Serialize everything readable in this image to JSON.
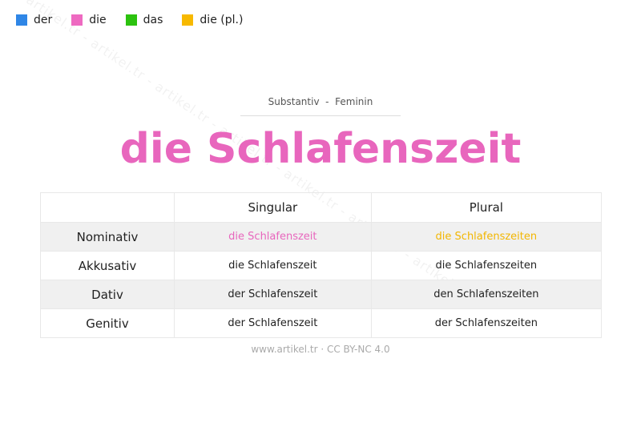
{
  "legend": [
    {
      "label": "der",
      "color": "#2f86e6"
    },
    {
      "label": "die",
      "color": "#ee6ac1"
    },
    {
      "label": "das",
      "color": "#2cc20f"
    },
    {
      "label": "die (pl.)",
      "color": "#f7b900"
    }
  ],
  "watermark": "artikel.tr - artikel.tr - artikel.tr - artikel.tr - artikel.tr - artikel.tr - artikel.tr",
  "subtitle": "Substantiv  -  Feminin",
  "title": "die Schlafenszeit",
  "table": {
    "headers": [
      "",
      "Singular",
      "Plural"
    ],
    "rows": [
      {
        "case": "Nominativ",
        "singular": "die Schlafenszeit",
        "plural": "die Schlafenszeiten"
      },
      {
        "case": "Akkusativ",
        "singular": "die Schlafenszeit",
        "plural": "die Schlafenszeiten"
      },
      {
        "case": "Dativ",
        "singular": "der Schlafenszeit",
        "plural": "den Schlafenszeiten"
      },
      {
        "case": "Genitiv",
        "singular": "der Schlafenszeit",
        "plural": "der Schlafenszeiten"
      }
    ]
  },
  "footer": "www.artikel.tr · CC BY-NC 4.0"
}
